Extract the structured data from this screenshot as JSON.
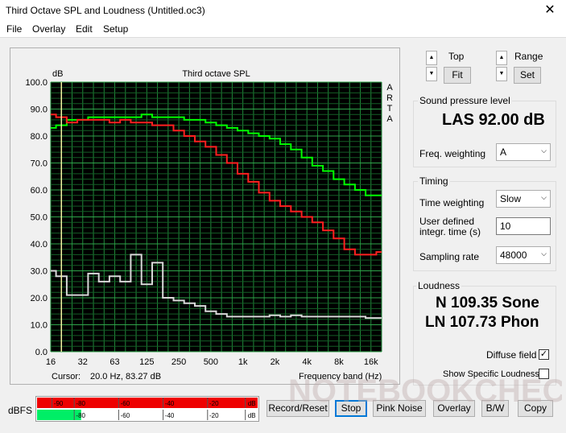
{
  "window": {
    "title": "Third Octave SPL and Loudness (Untitled.oc3)",
    "close_glyph": "✕"
  },
  "menu": [
    "File",
    "Overlay",
    "Edit",
    "Setup"
  ],
  "chart_data": {
    "type": "line",
    "title": "Third octave SPL",
    "ylabel": "dB",
    "xlabel": "Frequency band (Hz)",
    "side_label": [
      "A",
      "R",
      "T",
      "A"
    ],
    "ylim": [
      0,
      100
    ],
    "y_ticks": [
      "100.0",
      "90.0",
      "80.0",
      "70.0",
      "60.0",
      "50.0",
      "40.0",
      "30.0",
      "20.0",
      "10.0",
      "0.0"
    ],
    "x_tick_labels": [
      "16",
      "32",
      "63",
      "125",
      "250",
      "500",
      "1k",
      "2k",
      "4k",
      "8k",
      "16k"
    ],
    "x_bands": [
      "16",
      "20",
      "25",
      "31.5",
      "40",
      "50",
      "63",
      "80",
      "100",
      "125",
      "160",
      "200",
      "250",
      "315",
      "400",
      "500",
      "630",
      "800",
      "1k",
      "1.25k",
      "1.6k",
      "2k",
      "2.5k",
      "3.15k",
      "4k",
      "5k",
      "6.3k",
      "8k",
      "10k",
      "12.5k",
      "16k",
      "20k"
    ],
    "grid": true,
    "background": "#000000",
    "series": [
      {
        "color": "#00ff00",
        "values": [
          83,
          84,
          86,
          86,
          87,
          87,
          87,
          87,
          87,
          88,
          87,
          87,
          87,
          86,
          86,
          85,
          84,
          83,
          82,
          81,
          80,
          79,
          77,
          75,
          72,
          69,
          67,
          64,
          62,
          60,
          58,
          58
        ]
      },
      {
        "color": "#ff2020",
        "values": [
          88,
          87,
          85,
          86,
          86,
          86,
          85,
          86,
          85,
          85,
          84,
          84,
          82,
          80,
          78,
          76,
          73,
          70,
          66,
          63,
          59,
          56,
          54,
          52,
          50,
          48,
          45,
          42,
          38,
          36,
          36,
          37
        ]
      },
      {
        "color": "#d8d8d8",
        "values": [
          30,
          28,
          21,
          21,
          29,
          26,
          28,
          26,
          36,
          25,
          33,
          20,
          19,
          18,
          17,
          15,
          14,
          13,
          13,
          13,
          13,
          13.5,
          13,
          13.5,
          13,
          13,
          13,
          13,
          13,
          13,
          12.5,
          12.5
        ]
      }
    ],
    "cursor_x_band": "20"
  },
  "cursor": {
    "label": "Cursor:",
    "value": "20.0 Hz, 83.27 dB"
  },
  "zoom": {
    "top_label": "Top",
    "range_label": "Range",
    "fit_label": "Fit",
    "set_label": "Set",
    "up_glyph": "▲",
    "down_glyph": "▼"
  },
  "spl": {
    "group_title": "Sound pressure level",
    "value": "LAS 92.00 dB",
    "weighting_label": "Freq. weighting",
    "weighting_value": "A"
  },
  "timing": {
    "group_title": "Timing",
    "time_weighting_label": "Time weighting",
    "time_weighting_value": "Slow",
    "integr_label_1": "User defined",
    "integr_label_2": "integr. time (s)",
    "integr_value": "10",
    "sampling_label": "Sampling rate",
    "sampling_value": "48000"
  },
  "loudness": {
    "group_title": "Loudness",
    "sone": "N 109.35 Sone",
    "phon": "LN 107.73 Phon",
    "diffuse_label": "Diffuse field",
    "diffuse_checked": "✓",
    "specific_label": "Show Specific Loudness",
    "specific_checked": ""
  },
  "meter": {
    "label": "dBFS",
    "top_scale": [
      "-90",
      "-80",
      "-60",
      "-40",
      "-20",
      "dB"
    ],
    "bottom_scale": [
      "-80",
      "-60",
      "-40",
      "-20",
      "dB"
    ],
    "left_level_fraction": 1.0,
    "right_level_fraction": 0.2,
    "red_color": "#ee0000",
    "green_color": "#00ee66"
  },
  "buttons": {
    "record": "Record/Reset",
    "stop": "Stop",
    "pink": "Pink Noise",
    "overlay": "Overlay",
    "bw": "B/W",
    "copy": "Copy"
  },
  "watermark": "NOTEBOOKCHECK"
}
